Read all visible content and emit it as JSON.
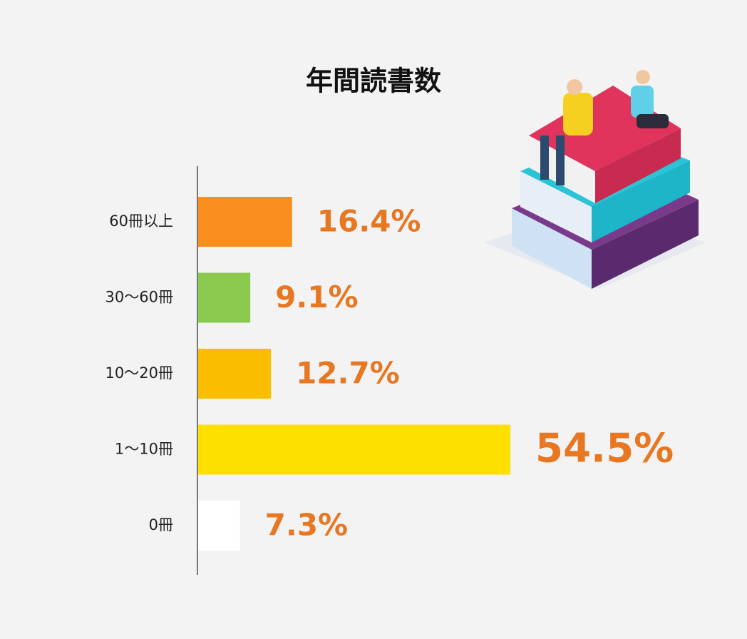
{
  "chart_data": {
    "type": "hbar",
    "title": "年間読書数",
    "categories": [
      "60冊以上",
      "30〜60冊",
      "10〜20冊",
      "1〜10冊",
      "0冊"
    ],
    "values": [
      16.4,
      9.1,
      12.7,
      54.5,
      7.3
    ],
    "value_labels": [
      "16.4%",
      "9.1%",
      "12.7%",
      "54.5%",
      "7.3%"
    ],
    "colors": [
      "#f98f1e",
      "#8bc94f",
      "#fbbd00",
      "#fde000",
      "#ffffff"
    ],
    "label_color": "#e87722"
  }
}
